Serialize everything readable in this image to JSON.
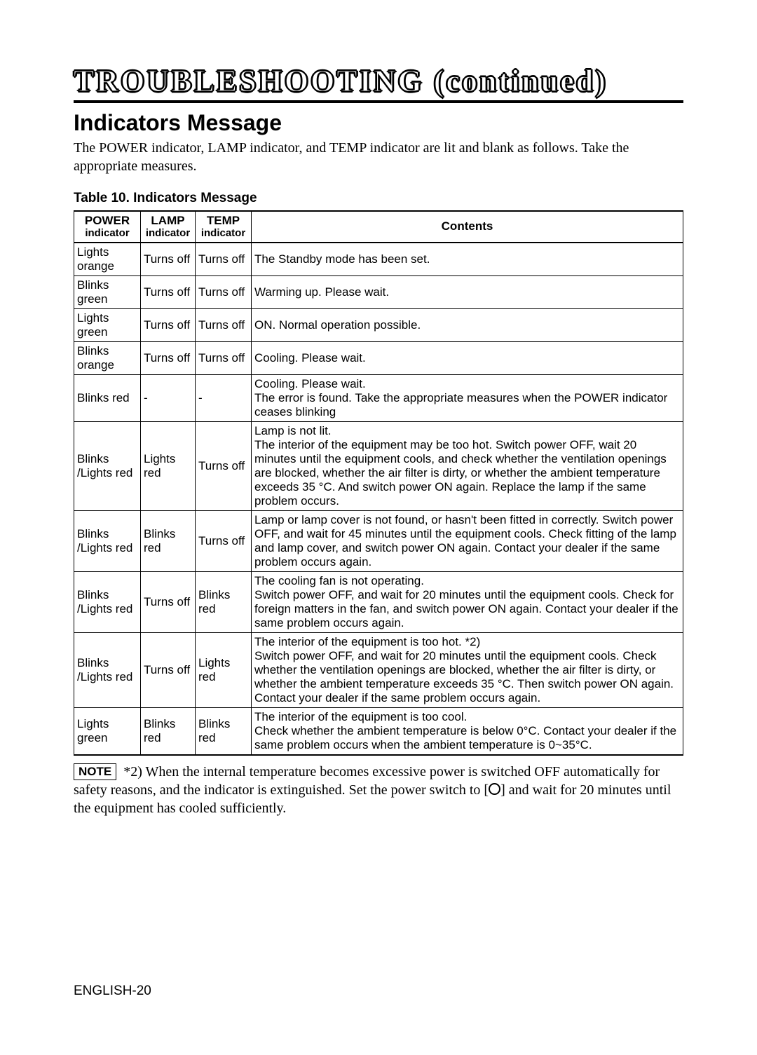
{
  "page_title": "TROUBLESHOOTING (continued)",
  "section_heading": "Indicators Message",
  "intro_text": "The POWER indicator, LAMP indicator, and TEMP indicator are lit and blank as follows. Take the appropriate measures.",
  "table_caption": "Table 10. Indicators Message",
  "columns": {
    "power_top": "POWER",
    "power_sub": "indicator",
    "lamp_top": "LAMP",
    "lamp_sub": "indicator",
    "temp_top": "TEMP",
    "temp_sub": "indicator",
    "contents": "Contents"
  },
  "rows": [
    {
      "power": "Lights orange",
      "lamp": "Turns off",
      "temp": "Turns off",
      "contents": "The Standby mode has been set."
    },
    {
      "power": "Blinks green",
      "lamp": "Turns off",
      "temp": "Turns off",
      "contents": "Warming up. Please wait."
    },
    {
      "power": "Lights green",
      "lamp": "Turns off",
      "temp": "Turns off",
      "contents": "ON. Normal operation possible."
    },
    {
      "power": "Blinks orange",
      "lamp": "Turns off",
      "temp": "Turns off",
      "contents": "Cooling. Please wait."
    },
    {
      "power": "Blinks red",
      "lamp": "-",
      "temp": "-",
      "contents": "Cooling. Please wait.\nThe error is found. Take the appropriate measures when the POWER indicator ceases blinking"
    },
    {
      "power": "Blinks /Lights red",
      "lamp": "Lights red",
      "temp": "Turns off",
      "contents": "Lamp is not lit.\nThe interior of the equipment may be too hot. Switch power OFF, wait 20 minutes until the equipment cools, and check whether the ventilation openings are  blocked, whether the air filter is dirty, or whether the ambient temperature exceeds 35 °C. And switch power ON again. Replace the lamp if the same problem occurs."
    },
    {
      "power": "Blinks /Lights red",
      "lamp": "Blinks red",
      "temp": "Turns off",
      "contents": "Lamp or lamp cover is not found, or hasn't been fitted in correctly. Switch power OFF, and wait for 45 minutes until the equipment cools. Check fitting of the lamp and lamp cover, and switch power ON again. Contact your dealer if the same problem occurs again."
    },
    {
      "power": "Blinks /Lights red",
      "lamp": "Turns off",
      "temp": "Blinks red",
      "contents": "The cooling fan is not operating.\nSwitch power OFF, and wait for 20 minutes until the equipment cools. Check for foreign matters in the fan, and switch power ON again. Contact your dealer if the same problem occurs again."
    },
    {
      "power": "Blinks /Lights red",
      "lamp": "Turns off",
      "temp": "Lights red",
      "contents": "The interior of the equipment is too hot. *2)\nSwitch power OFF, and wait for 20 minutes until the equipment cools. Check whether the ventilation openings are  blocked, whether the air filter is dirty, or whether the ambient temperature exceeds 35 °C. Then switch power ON again. Contact your dealer if the same problem occurs again."
    },
    {
      "power": "Lights green",
      "lamp": "Blinks red",
      "temp": "Blinks red",
      "contents": "The interior of the equipment is too cool.\nCheck whether the ambient temperature is below 0°C. Contact your dealer if the same problem occurs when the ambient temperature is 0~35°C."
    }
  ],
  "note_label": "NOTE",
  "note_part1": "*2) When the internal temperature becomes excessive power is switched OFF automatically for safety reasons, and the indicator is extinguished. Set the power switch to [",
  "note_part2": "] and wait for 20 minutes until the equipment has cooled sufficiently.",
  "footer": "ENGLISH-20"
}
